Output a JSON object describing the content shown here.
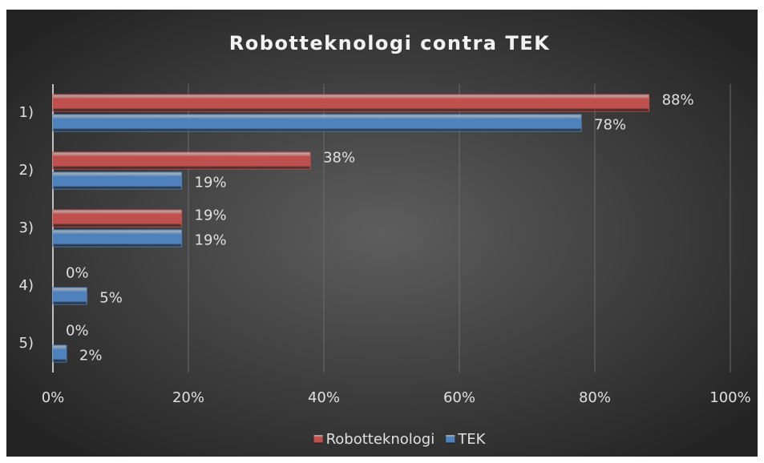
{
  "chart_data": {
    "type": "hbar",
    "title": "Robotteknologi contra TEK",
    "categories": [
      "1)",
      "2)",
      "3)",
      "4)",
      "5)"
    ],
    "series": [
      {
        "name": "Robotteknologi",
        "color": "#c0504d",
        "values": [
          88,
          38,
          19,
          0,
          0
        ],
        "value_labels": [
          "88%",
          "38%",
          "19%",
          "0%",
          "0%"
        ]
      },
      {
        "name": "TEK",
        "color": "#4f81bd",
        "values": [
          78,
          19,
          19,
          5,
          2
        ],
        "value_labels": [
          "78%",
          "19%",
          "19%",
          "5%",
          "2%"
        ]
      }
    ],
    "xlim": [
      0,
      100
    ],
    "xticks": [
      {
        "value": 0,
        "label": "0%"
      },
      {
        "value": 20,
        "label": "20%"
      },
      {
        "value": 40,
        "label": "40%"
      },
      {
        "value": 60,
        "label": "60%"
      },
      {
        "value": 80,
        "label": "80%"
      },
      {
        "value": 100,
        "label": "100%"
      }
    ],
    "grid": true,
    "legend": "bottom"
  }
}
